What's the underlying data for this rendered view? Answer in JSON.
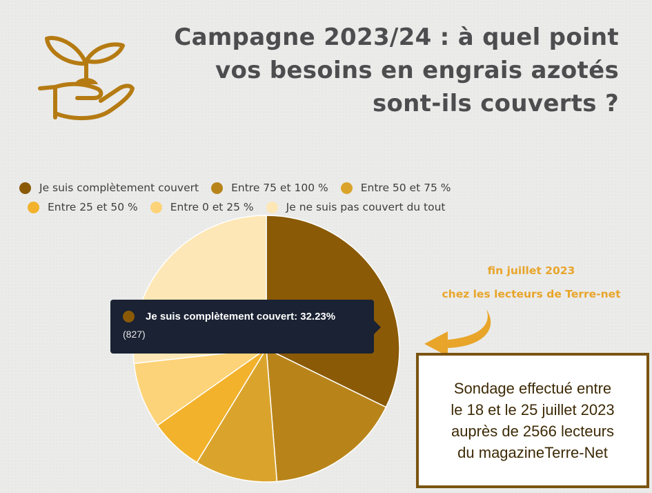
{
  "title_lines": [
    "Campagne 2023/24 : à quel point",
    "vos besoins en engrais azotés",
    "sont-ils couverts ?"
  ],
  "icons": {
    "logo": "hand-holding-seedling-icon",
    "arrow": "curved-arrow-icon"
  },
  "colors": {
    "logo": "#b57b12",
    "note": "#e8a52a",
    "tooltip_bg": "#1a2233",
    "box_border": "#7a5410"
  },
  "legend": [
    {
      "label": "Je suis complètement couvert",
      "color": "#8a5a06"
    },
    {
      "label": "Entre 75 et 100 %",
      "color": "#b8841a"
    },
    {
      "label": "Entre 50 et 75 %",
      "color": "#daa42c"
    },
    {
      "label": "Entre 25 et 50 %",
      "color": "#f2b22c"
    },
    {
      "label": "Entre 0 et 25 %",
      "color": "#fcd378"
    },
    {
      "label": "Je ne suis pas couvert du tout",
      "color": "#fde7b6"
    }
  ],
  "note_lines": [
    "fin juillet 2023",
    "chez les lecteurs de Terre-net"
  ],
  "tooltip": {
    "label": "Je suis complètement couvert: 32.23%",
    "count": "(827)"
  },
  "infobox_lines": [
    "Sondage effectué entre",
    "le 18 et le 25 juillet 2023",
    "auprès de 2566 lecteurs",
    "du magazineTerre-Net"
  ],
  "chart_data": {
    "type": "pie",
    "start_angle_deg": 0,
    "direction": "clockwise",
    "categories": [
      "Je suis complètement couvert",
      "Entre 75 et 100 %",
      "Entre 50 et 75 %",
      "Entre 25 et 50 %",
      "Entre 0 et 25 %",
      "Je ne suis pas couvert du tout"
    ],
    "values": [
      32.23,
      16.5,
      10.0,
      6.5,
      8.0,
      26.77
    ],
    "counts": [
      827,
      null,
      null,
      null,
      null,
      null
    ],
    "colors": [
      "#8a5a06",
      "#b8841a",
      "#daa42c",
      "#f2b22c",
      "#fcd378",
      "#fde7b6"
    ],
    "highlighted": "Je suis complètement couvert",
    "legend_position": "top"
  }
}
